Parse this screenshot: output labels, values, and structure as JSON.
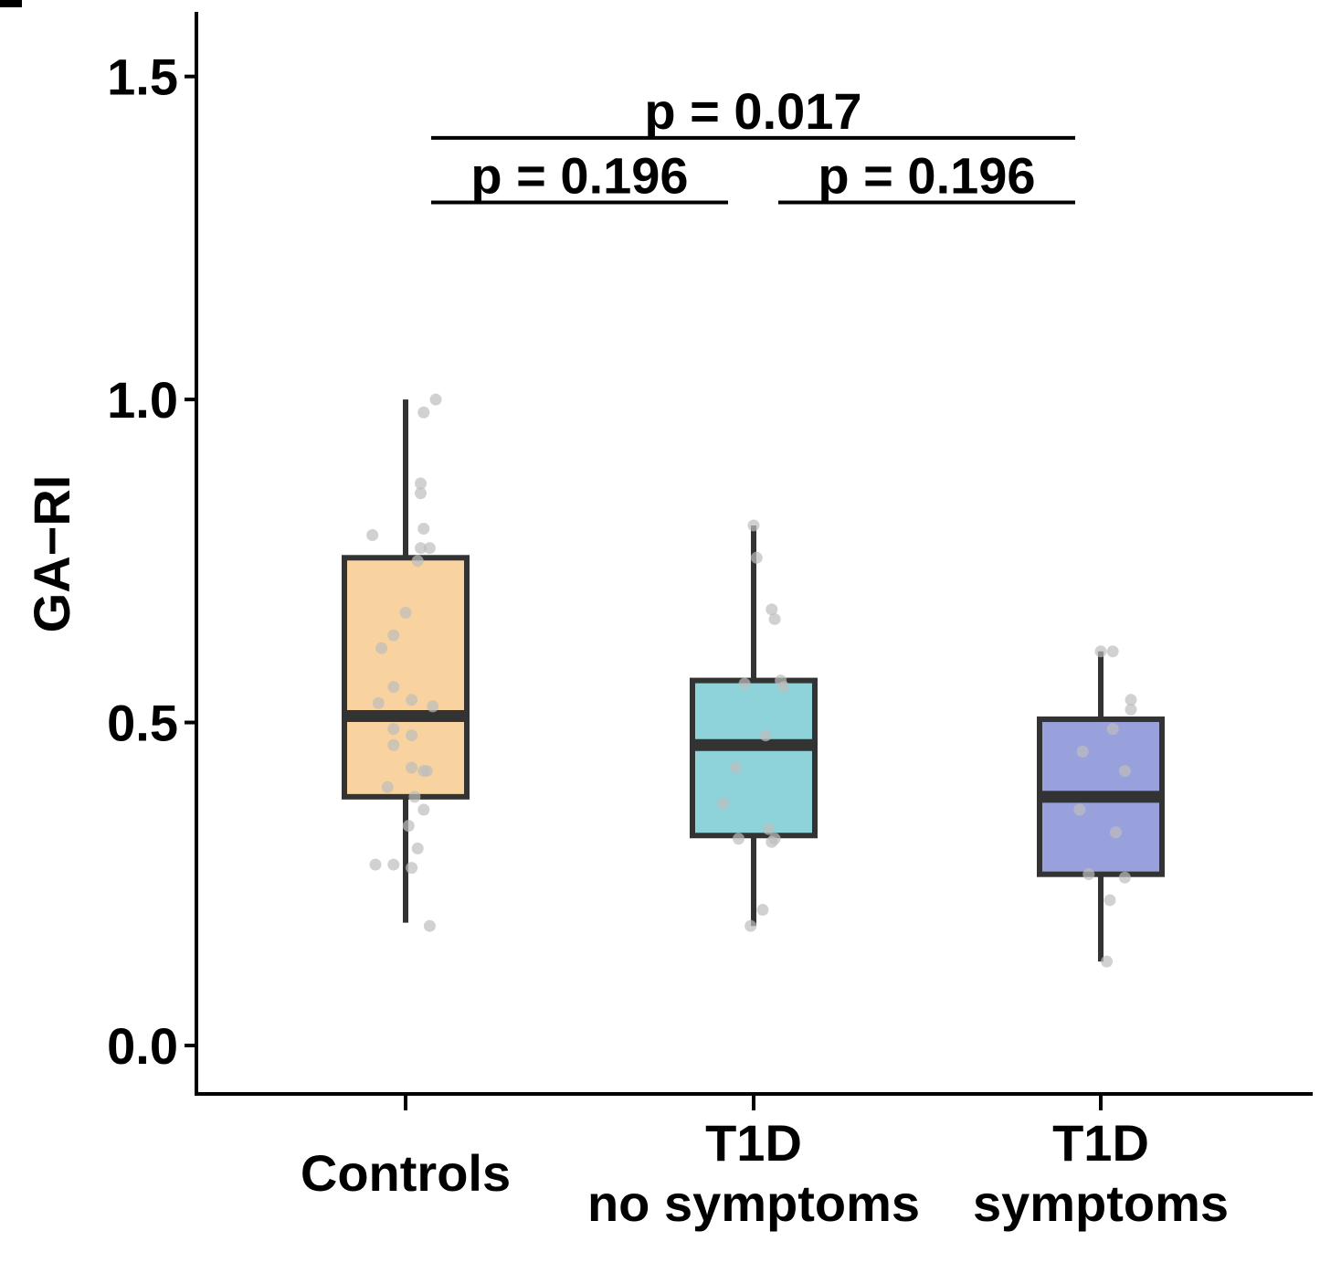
{
  "chart_data": {
    "type": "box",
    "ylabel": "GA−RI",
    "xlabel": "",
    "ylim": [
      -0.075,
      1.6
    ],
    "yticks": [
      0.0,
      0.5,
      1.0,
      1.5
    ],
    "ytick_labels": [
      "0.0",
      "0.5",
      "1.0",
      "1.5"
    ],
    "categories": [
      {
        "label_lines": [
          "Controls"
        ]
      },
      {
        "label_lines": [
          "T1D",
          "no symptoms"
        ]
      },
      {
        "label_lines": [
          "T1D",
          "symptoms"
        ]
      }
    ],
    "boxes": [
      {
        "whisker_low": 0.19,
        "q1": 0.385,
        "median": 0.51,
        "q3": 0.755,
        "whisker_high": 1.0,
        "color": "#F8D39F"
      },
      {
        "whisker_low": 0.185,
        "q1": 0.325,
        "median": 0.465,
        "q3": 0.565,
        "whisker_high": 0.805,
        "color": "#8DD3D9"
      },
      {
        "whisker_low": 0.13,
        "q1": 0.265,
        "median": 0.385,
        "q3": 0.505,
        "whisker_high": 0.61,
        "color": "#99A1DD"
      }
    ],
    "points": [
      [
        {
          "dx": 0.1,
          "y": 1.0
        },
        {
          "dx": 0.06,
          "y": 0.98
        },
        {
          "dx": 0.05,
          "y": 0.87
        },
        {
          "dx": 0.05,
          "y": 0.855
        },
        {
          "dx": -0.11,
          "y": 0.79
        },
        {
          "dx": 0.06,
          "y": 0.8
        },
        {
          "dx": 0.05,
          "y": 0.77
        },
        {
          "dx": 0.08,
          "y": 0.77
        },
        {
          "dx": 0.04,
          "y": 0.75
        },
        {
          "dx": 0.0,
          "y": 0.67
        },
        {
          "dx": -0.04,
          "y": 0.635
        },
        {
          "dx": -0.08,
          "y": 0.615
        },
        {
          "dx": -0.04,
          "y": 0.555
        },
        {
          "dx": 0.02,
          "y": 0.535
        },
        {
          "dx": -0.09,
          "y": 0.53
        },
        {
          "dx": 0.09,
          "y": 0.525
        },
        {
          "dx": -0.04,
          "y": 0.49
        },
        {
          "dx": 0.02,
          "y": 0.48
        },
        {
          "dx": -0.04,
          "y": 0.465
        },
        {
          "dx": 0.02,
          "y": 0.43
        },
        {
          "dx": 0.06,
          "y": 0.425
        },
        {
          "dx": 0.07,
          "y": 0.425
        },
        {
          "dx": -0.06,
          "y": 0.4
        },
        {
          "dx": 0.03,
          "y": 0.385
        },
        {
          "dx": 0.06,
          "y": 0.365
        },
        {
          "dx": 0.01,
          "y": 0.34
        },
        {
          "dx": 0.04,
          "y": 0.305
        },
        {
          "dx": -0.1,
          "y": 0.28
        },
        {
          "dx": -0.04,
          "y": 0.28
        },
        {
          "dx": 0.02,
          "y": 0.275
        },
        {
          "dx": 0.08,
          "y": 0.185
        }
      ],
      [
        {
          "dx": 0.0,
          "y": 0.805
        },
        {
          "dx": 0.01,
          "y": 0.755
        },
        {
          "dx": 0.06,
          "y": 0.675
        },
        {
          "dx": 0.07,
          "y": 0.66
        },
        {
          "dx": -0.03,
          "y": 0.56
        },
        {
          "dx": 0.09,
          "y": 0.565
        },
        {
          "dx": 0.1,
          "y": 0.555
        },
        {
          "dx": 0.04,
          "y": 0.48
        },
        {
          "dx": -0.06,
          "y": 0.43
        },
        {
          "dx": -0.1,
          "y": 0.375
        },
        {
          "dx": 0.05,
          "y": 0.335
        },
        {
          "dx": 0.07,
          "y": 0.32
        },
        {
          "dx": -0.05,
          "y": 0.32
        },
        {
          "dx": 0.06,
          "y": 0.315
        },
        {
          "dx": 0.03,
          "y": 0.21
        },
        {
          "dx": -0.01,
          "y": 0.185
        }
      ],
      [
        {
          "dx": 0.0,
          "y": 0.61
        },
        {
          "dx": 0.04,
          "y": 0.61
        },
        {
          "dx": 0.1,
          "y": 0.535
        },
        {
          "dx": 0.1,
          "y": 0.52
        },
        {
          "dx": 0.04,
          "y": 0.49
        },
        {
          "dx": -0.06,
          "y": 0.455
        },
        {
          "dx": 0.08,
          "y": 0.425
        },
        {
          "dx": -0.07,
          "y": 0.365
        },
        {
          "dx": 0.05,
          "y": 0.33
        },
        {
          "dx": -0.04,
          "y": 0.265
        },
        {
          "dx": 0.08,
          "y": 0.26
        },
        {
          "dx": 0.03,
          "y": 0.225
        },
        {
          "dx": 0.02,
          "y": 0.13
        }
      ]
    ],
    "annotations": [
      {
        "from": 0,
        "to": 2,
        "level": 1.405,
        "text": "p = 0.017"
      },
      {
        "from": 0,
        "to": 1,
        "level": 1.305,
        "text": "p = 0.196"
      },
      {
        "from": 1,
        "to": 2,
        "level": 1.305,
        "text": "p = 0.196"
      }
    ]
  }
}
